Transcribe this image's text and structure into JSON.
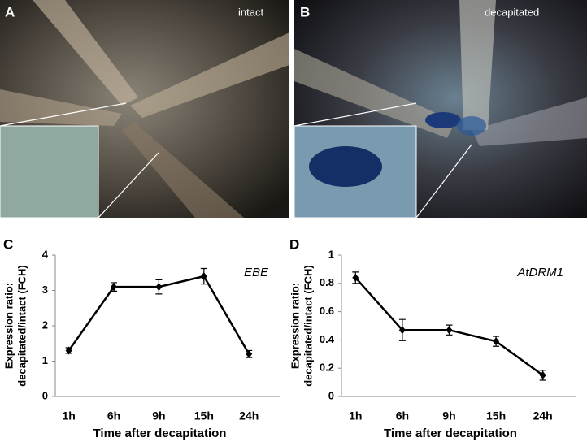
{
  "panels": [
    {
      "label": "A",
      "caption": "intact"
    },
    {
      "label": "B",
      "caption": "decapitated"
    }
  ],
  "chart_data": [
    {
      "type": "line",
      "panel_label": "C",
      "annotation": "EBE",
      "xlabel": "Time after decapitation",
      "ylabel": [
        "Expression ratio:",
        "decapitated/intact (FCH)"
      ],
      "categories": [
        "1h",
        "6h",
        "9h",
        "15h",
        "24h"
      ],
      "values": [
        1.3,
        3.1,
        3.1,
        3.4,
        1.2
      ],
      "errors": [
        0.08,
        0.12,
        0.2,
        0.22,
        0.1
      ],
      "color": "#000000",
      "ylim": [
        0,
        4
      ],
      "yticks": [
        0,
        1,
        2,
        3,
        4
      ],
      "grid": false
    },
    {
      "type": "line",
      "panel_label": "D",
      "annotation": "AtDRM1",
      "xlabel": "Time after decapitation",
      "ylabel": [
        "Expression ratio:",
        "decapitated/intact (FCH)"
      ],
      "categories": [
        "1h",
        "6h",
        "9h",
        "15h",
        "24h"
      ],
      "values": [
        0.84,
        0.47,
        0.47,
        0.39,
        0.15
      ],
      "errors": [
        0.04,
        0.075,
        0.035,
        0.035,
        0.035
      ],
      "color": "#000000",
      "ylim": [
        0,
        1
      ],
      "yticks": [
        0,
        0.2,
        0.4,
        0.6,
        0.8,
        1
      ],
      "grid": false
    }
  ]
}
